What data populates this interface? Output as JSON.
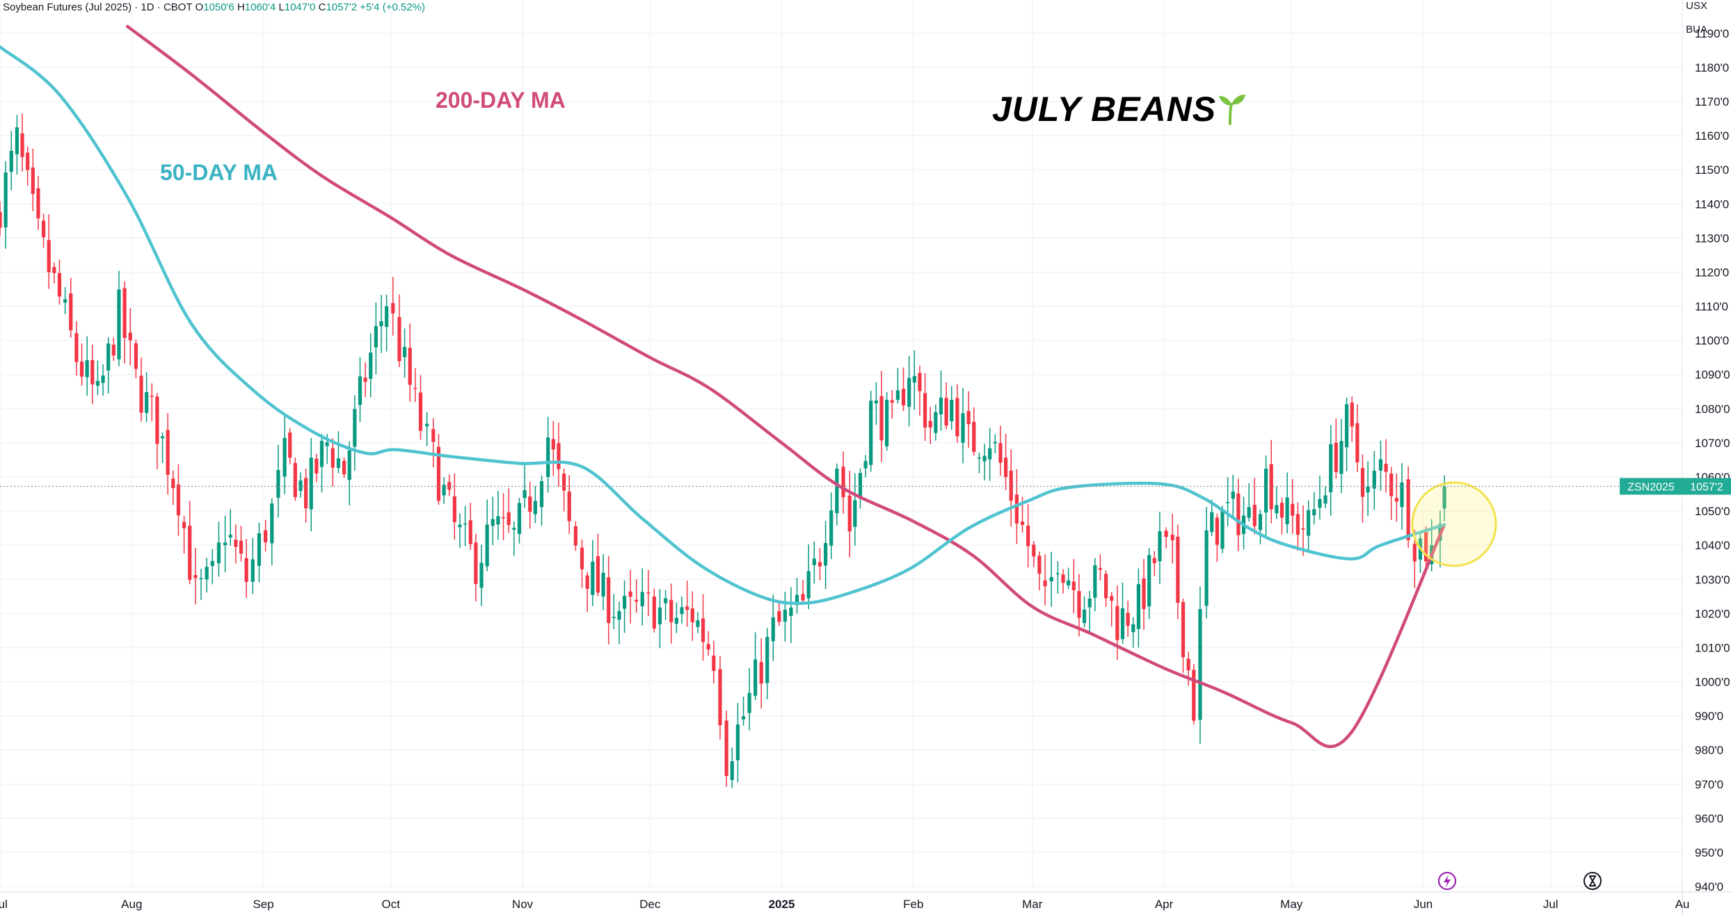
{
  "header": {
    "title": "Soybean Futures (Jul 2025) · 1D · CBOT",
    "o_label": "O",
    "o_value": "1050'6",
    "h_label": "H",
    "h_value": "1060'4",
    "l_label": "L",
    "l_value": "1047'0",
    "c_label": "C",
    "c_value": "1057'2",
    "change": "+5'4 (+0.52%)"
  },
  "units": {
    "currency": "USX",
    "unit": "BUA"
  },
  "annotations": {
    "ma200": "200-DAY MA",
    "ma50": "50-DAY MA",
    "title": "JULY BEANS"
  },
  "price_tag": {
    "symbol": "ZSN2025",
    "value": "1057'2"
  },
  "colors": {
    "up": "#089981",
    "down": "#f23645",
    "ma50": "#4fc3d0",
    "ma200": "#d04a7a",
    "highlight": "#fff27a",
    "tag": "#22ab94",
    "sprout": "#7cc242"
  },
  "icons": {
    "bolt": "lightning-icon",
    "clock": "hourglass-icon"
  },
  "chart_data": {
    "type": "candlestick",
    "y_axis": {
      "ticks": [
        "1190'0",
        "1180'0",
        "1170'0",
        "1160'0",
        "1150'0",
        "1140'0",
        "1130'0",
        "1120'0",
        "1110'0",
        "1100'0",
        "1090'0",
        "1080'0",
        "1070'0",
        "1060'0",
        "1050'0",
        "1040'0",
        "1030'0",
        "1020'0",
        "1010'0",
        "1000'0",
        "990'0",
        "980'0",
        "970'0",
        "960'0",
        "950'0",
        "940'0"
      ],
      "tick_values": [
        1190,
        1180,
        1170,
        1160,
        1150,
        1140,
        1130,
        1120,
        1110,
        1100,
        1090,
        1080,
        1070,
        1060,
        1050,
        1040,
        1030,
        1020,
        1010,
        1000,
        990,
        980,
        970,
        960,
        950,
        940
      ],
      "range": [
        939,
        1192
      ]
    },
    "x_axis": {
      "labels": [
        {
          "label": "Jul",
          "date": "2024-07-01",
          "bold": false
        },
        {
          "label": "Aug",
          "date": "2024-08-01",
          "bold": false
        },
        {
          "label": "Sep",
          "date": "2024-09-01",
          "bold": false
        },
        {
          "label": "Oct",
          "date": "2024-10-01",
          "bold": false
        },
        {
          "label": "Nov",
          "date": "2024-11-01",
          "bold": false
        },
        {
          "label": "Dec",
          "date": "2024-12-01",
          "bold": false
        },
        {
          "label": "2025",
          "date": "2025-01-01",
          "bold": true
        },
        {
          "label": "Feb",
          "date": "2025-02-01",
          "bold": false
        },
        {
          "label": "Mar",
          "date": "2025-03-01",
          "bold": false
        },
        {
          "label": "Apr",
          "date": "2025-04-01",
          "bold": false
        },
        {
          "label": "May",
          "date": "2025-05-01",
          "bold": false
        },
        {
          "label": "Jun",
          "date": "2025-06-01",
          "bold": false
        },
        {
          "label": "Jul",
          "date": "2025-07-01",
          "bold": false
        },
        {
          "label": "Au",
          "date": "2025-08-01",
          "bold": false
        }
      ],
      "range": [
        "2024-07-01",
        "2025-08-01"
      ]
    },
    "last_price": 1057.25,
    "highlight_circle": {
      "date": "2025-06-06",
      "price": 1047
    },
    "closes": [
      [
        "2024-07-01",
        1140
      ],
      [
        "2024-07-05",
        1158
      ],
      [
        "2024-07-10",
        1130
      ],
      [
        "2024-07-15",
        1112
      ],
      [
        "2024-07-19",
        1095
      ],
      [
        "2024-07-24",
        1082
      ],
      [
        "2024-07-29",
        1108
      ],
      [
        "2024-08-02",
        1088
      ],
      [
        "2024-08-07",
        1075
      ],
      [
        "2024-08-12",
        1055
      ],
      [
        "2024-08-16",
        1025
      ],
      [
        "2024-08-20",
        1030
      ],
      [
        "2024-08-23",
        1045
      ],
      [
        "2024-08-28",
        1030
      ],
      [
        "2024-09-03",
        1050
      ],
      [
        "2024-09-06",
        1065
      ],
      [
        "2024-09-11",
        1055
      ],
      [
        "2024-09-16",
        1070
      ],
      [
        "2024-09-20",
        1062
      ],
      [
        "2024-09-25",
        1090
      ],
      [
        "2024-09-30",
        1112
      ],
      [
        "2024-10-03",
        1098
      ],
      [
        "2024-10-08",
        1075
      ],
      [
        "2024-10-11",
        1065
      ],
      [
        "2024-10-16",
        1045
      ],
      [
        "2024-10-21",
        1035
      ],
      [
        "2024-10-25",
        1045
      ],
      [
        "2024-10-30",
        1042
      ],
      [
        "2024-11-04",
        1058
      ],
      [
        "2024-11-07",
        1072
      ],
      [
        "2024-11-12",
        1045
      ],
      [
        "2024-11-15",
        1035
      ],
      [
        "2024-11-20",
        1025
      ],
      [
        "2024-11-25",
        1020
      ],
      [
        "2024-12-02",
        1022
      ],
      [
        "2024-12-06",
        1018
      ],
      [
        "2024-12-11",
        1020
      ],
      [
        "2024-12-16",
        1008
      ],
      [
        "2024-12-19",
        978
      ],
      [
        "2024-12-23",
        990
      ],
      [
        "2024-12-30",
        1015
      ],
      [
        "2025-01-06",
        1022
      ],
      [
        "2025-01-10",
        1038
      ],
      [
        "2025-01-14",
        1065
      ],
      [
        "2025-01-17",
        1045
      ],
      [
        "2025-01-22",
        1080
      ],
      [
        "2025-01-27",
        1075
      ],
      [
        "2025-01-31",
        1092
      ],
      [
        "2025-02-05",
        1075
      ],
      [
        "2025-02-10",
        1082
      ],
      [
        "2025-02-14",
        1070
      ],
      [
        "2025-02-19",
        1072
      ],
      [
        "2025-02-24",
        1055
      ],
      [
        "2025-02-28",
        1040
      ],
      [
        "2025-03-04",
        1022
      ],
      [
        "2025-03-07",
        1038
      ],
      [
        "2025-03-12",
        1025
      ],
      [
        "2025-03-17",
        1030
      ],
      [
        "2025-03-21",
        1018
      ],
      [
        "2025-03-26",
        1022
      ],
      [
        "2025-03-31",
        1040
      ],
      [
        "2025-04-03",
        1035
      ],
      [
        "2025-04-08",
        993
      ],
      [
        "2025-04-11",
        1042
      ],
      [
        "2025-04-16",
        1050
      ],
      [
        "2025-04-21",
        1048
      ],
      [
        "2025-04-25",
        1060
      ],
      [
        "2025-04-30",
        1048
      ],
      [
        "2025-05-05",
        1045
      ],
      [
        "2025-05-09",
        1060
      ],
      [
        "2025-05-14",
        1075
      ],
      [
        "2025-05-19",
        1055
      ],
      [
        "2025-05-22",
        1062
      ],
      [
        "2025-05-27",
        1055
      ],
      [
        "2025-05-30",
        1042
      ],
      [
        "2025-06-03",
        1038
      ],
      [
        "2025-06-05",
        1050
      ],
      [
        "2025-06-06",
        1057.25
      ]
    ],
    "ma50": [
      [
        "2024-07-01",
        1186
      ],
      [
        "2024-07-15",
        1172
      ],
      [
        "2024-07-31",
        1142
      ],
      [
        "2024-08-15",
        1105
      ],
      [
        "2024-08-30",
        1085
      ],
      [
        "2024-09-13",
        1073
      ],
      [
        "2024-09-25",
        1067
      ],
      [
        "2024-10-02",
        1068
      ],
      [
        "2024-10-15",
        1066
      ],
      [
        "2024-10-31",
        1064
      ],
      [
        "2024-11-15",
        1063
      ],
      [
        "2024-11-29",
        1048
      ],
      [
        "2024-12-13",
        1034
      ],
      [
        "2024-12-27",
        1025
      ],
      [
        "2025-01-06",
        1023
      ],
      [
        "2025-01-17",
        1026
      ],
      [
        "2025-01-31",
        1033
      ],
      [
        "2025-02-14",
        1045
      ],
      [
        "2025-02-28",
        1053
      ],
      [
        "2025-03-10",
        1057
      ],
      [
        "2025-03-31",
        1058
      ],
      [
        "2025-04-10",
        1054
      ],
      [
        "2025-04-21",
        1045
      ],
      [
        "2025-04-30",
        1040
      ],
      [
        "2025-05-15",
        1036
      ],
      [
        "2025-05-22",
        1040
      ],
      [
        "2025-06-06",
        1046
      ]
    ],
    "ma200": [
      [
        "2024-07-31",
        1192
      ],
      [
        "2024-08-15",
        1178
      ],
      [
        "2024-09-01",
        1161
      ],
      [
        "2024-09-15",
        1148
      ],
      [
        "2024-10-01",
        1136
      ],
      [
        "2024-10-15",
        1125
      ],
      [
        "2024-11-01",
        1115
      ],
      [
        "2024-11-15",
        1106
      ],
      [
        "2024-12-01",
        1095
      ],
      [
        "2024-12-15",
        1086
      ],
      [
        "2025-01-01",
        1070
      ],
      [
        "2025-01-15",
        1057
      ],
      [
        "2025-02-01",
        1047
      ],
      [
        "2025-02-15",
        1037
      ],
      [
        "2025-03-01",
        1022
      ],
      [
        "2025-03-15",
        1014
      ],
      [
        "2025-04-01",
        1004
      ],
      [
        "2025-04-15",
        997
      ],
      [
        "2025-05-01",
        988
      ],
      [
        "2025-05-15",
        985
      ],
      [
        "2025-06-06",
        1046
      ]
    ]
  }
}
